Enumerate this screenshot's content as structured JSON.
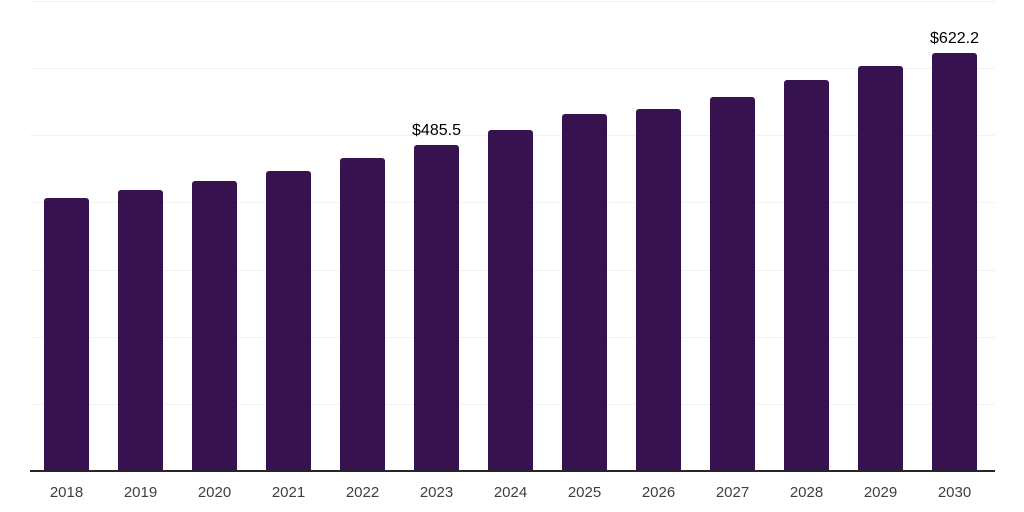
{
  "chart_data": {
    "type": "bar",
    "title": "",
    "xlabel": "",
    "ylabel": "",
    "categories": [
      "2018",
      "2019",
      "2020",
      "2021",
      "2022",
      "2023",
      "2024",
      "2025",
      "2026",
      "2027",
      "2028",
      "2029",
      "2030"
    ],
    "values": [
      407.4,
      418.6,
      431.4,
      447.3,
      465.6,
      485.5,
      508.5,
      532.3,
      539.6,
      556.7,
      581.9,
      602.7,
      622.2
    ],
    "data_labels": [
      null,
      null,
      null,
      null,
      null,
      "$485.5",
      null,
      null,
      null,
      null,
      null,
      null,
      "$622.2"
    ],
    "ylim": [
      0,
      700
    ],
    "gridline_interval": 100,
    "grid": true,
    "legend": false,
    "y_axis_labels_visible": false,
    "colors": {
      "bar": "#36124e",
      "gridline": "#f2f2f2",
      "axis_line": "#262626",
      "tick_label": "#404040",
      "data_label": "#000000",
      "background": "#ffffff"
    }
  }
}
